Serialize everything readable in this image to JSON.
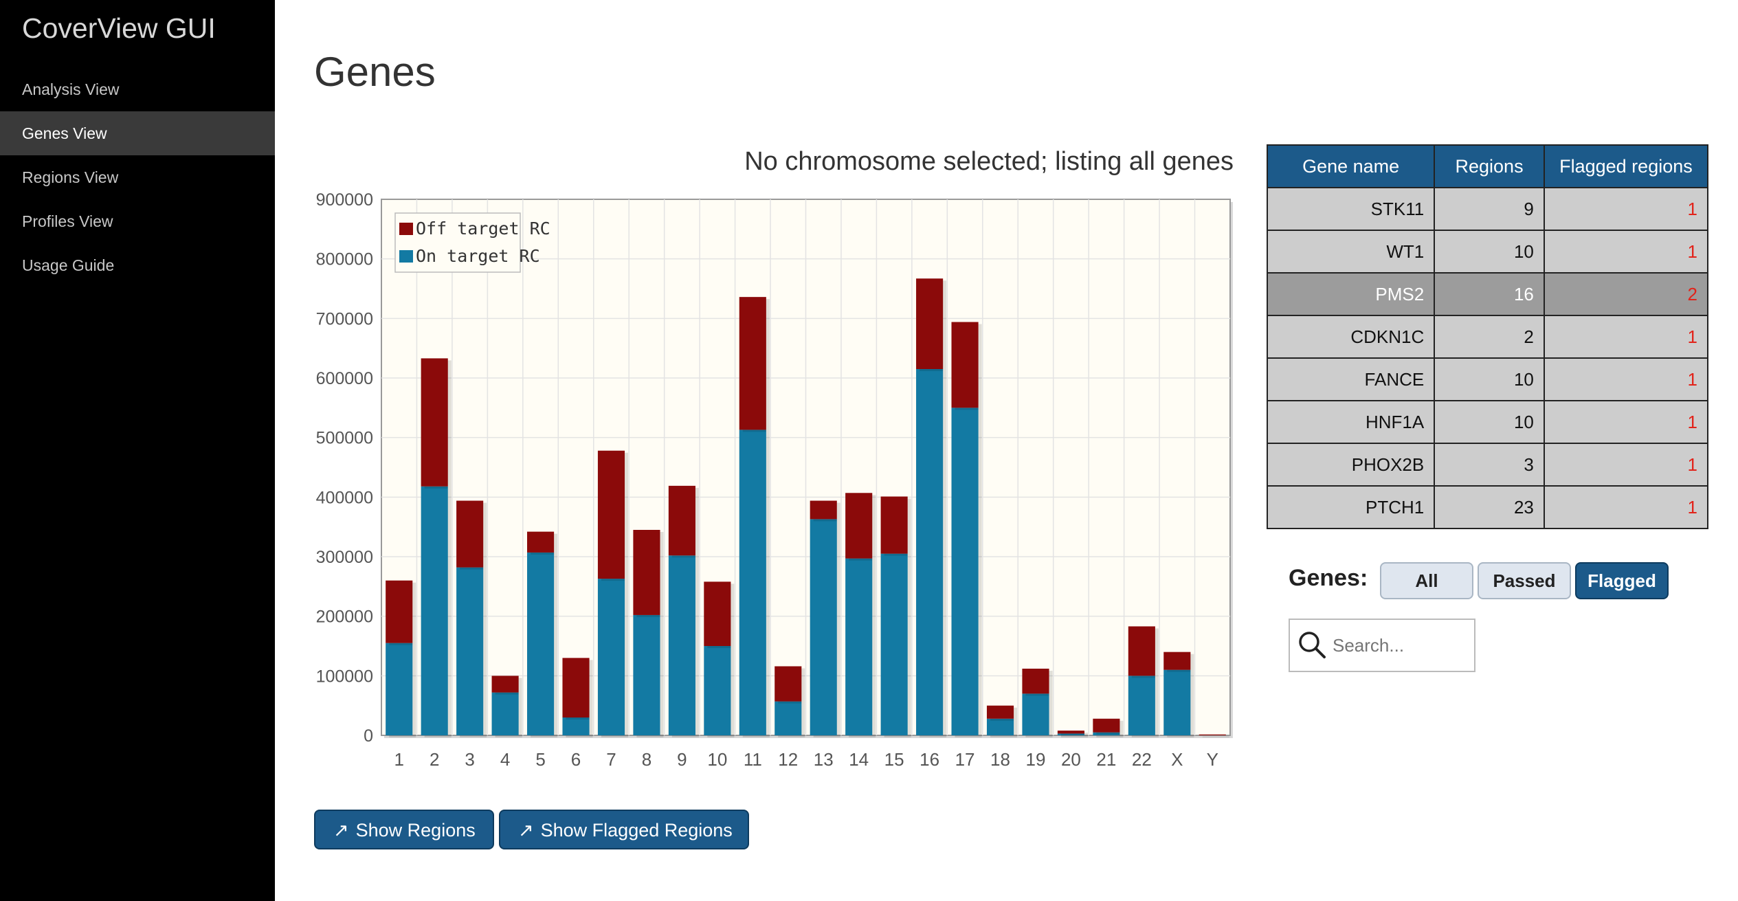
{
  "app": {
    "title": "CoverView GUI"
  },
  "sidebar": {
    "items": [
      {
        "label": "Analysis View"
      },
      {
        "label": "Genes View"
      },
      {
        "label": "Regions View"
      },
      {
        "label": "Profiles View"
      },
      {
        "label": "Usage Guide"
      }
    ],
    "active_index": 1
  },
  "page": {
    "title": "Genes"
  },
  "chart_data": {
    "type": "bar",
    "stacked": true,
    "title": "No chromosome selected; listing all genes",
    "categories": [
      "1",
      "2",
      "3",
      "4",
      "5",
      "6",
      "7",
      "8",
      "9",
      "10",
      "11",
      "12",
      "13",
      "14",
      "15",
      "16",
      "17",
      "18",
      "19",
      "20",
      "21",
      "22",
      "X",
      "Y"
    ],
    "series": [
      {
        "name": "On target RC",
        "color": "#137aa3",
        "values": [
          155000,
          418000,
          282000,
          72000,
          307000,
          30000,
          263000,
          202000,
          302000,
          150000,
          513000,
          57000,
          363000,
          297000,
          305000,
          615000,
          550000,
          28000,
          70000,
          3000,
          5000,
          100000,
          110000,
          0
        ]
      },
      {
        "name": "Off target RC",
        "color": "#8b0a0a",
        "values": [
          105000,
          215000,
          112000,
          28000,
          35000,
          100000,
          215000,
          143000,
          117000,
          108000,
          223000,
          59000,
          31000,
          110000,
          96000,
          152000,
          144000,
          22000,
          42000,
          5000,
          23000,
          83000,
          30000,
          1500
        ]
      }
    ],
    "yticks": [
      "0",
      "100000",
      "200000",
      "300000",
      "400000",
      "500000",
      "600000",
      "700000",
      "800000",
      "900000"
    ],
    "ylim": [
      0,
      900000
    ],
    "xlabel": "",
    "ylabel": "",
    "legend": "top-left",
    "grid": true
  },
  "buttons": {
    "show_regions": "Show Regions",
    "show_flagged_regions": "Show Flagged Regions",
    "arrow": "↗"
  },
  "table": {
    "headers": [
      "Gene name",
      "Regions",
      "Flagged regions"
    ],
    "rows": [
      {
        "gene": "STK11",
        "regions": "9",
        "flagged": "1"
      },
      {
        "gene": "WT1",
        "regions": "10",
        "flagged": "1"
      },
      {
        "gene": "PMS2",
        "regions": "16",
        "flagged": "2"
      },
      {
        "gene": "CDKN1C",
        "regions": "2",
        "flagged": "1"
      },
      {
        "gene": "FANCE",
        "regions": "10",
        "flagged": "1"
      },
      {
        "gene": "HNF1A",
        "regions": "10",
        "flagged": "1"
      },
      {
        "gene": "PHOX2B",
        "regions": "3",
        "flagged": "1"
      },
      {
        "gene": "PTCH1",
        "regions": "23",
        "flagged": "1"
      }
    ],
    "highlighted_row": 2
  },
  "filter": {
    "label": "Genes:",
    "options": [
      "All",
      "Passed",
      "Flagged"
    ],
    "selected": "Flagged"
  },
  "search": {
    "placeholder": "Search...",
    "icon": "search-icon"
  }
}
